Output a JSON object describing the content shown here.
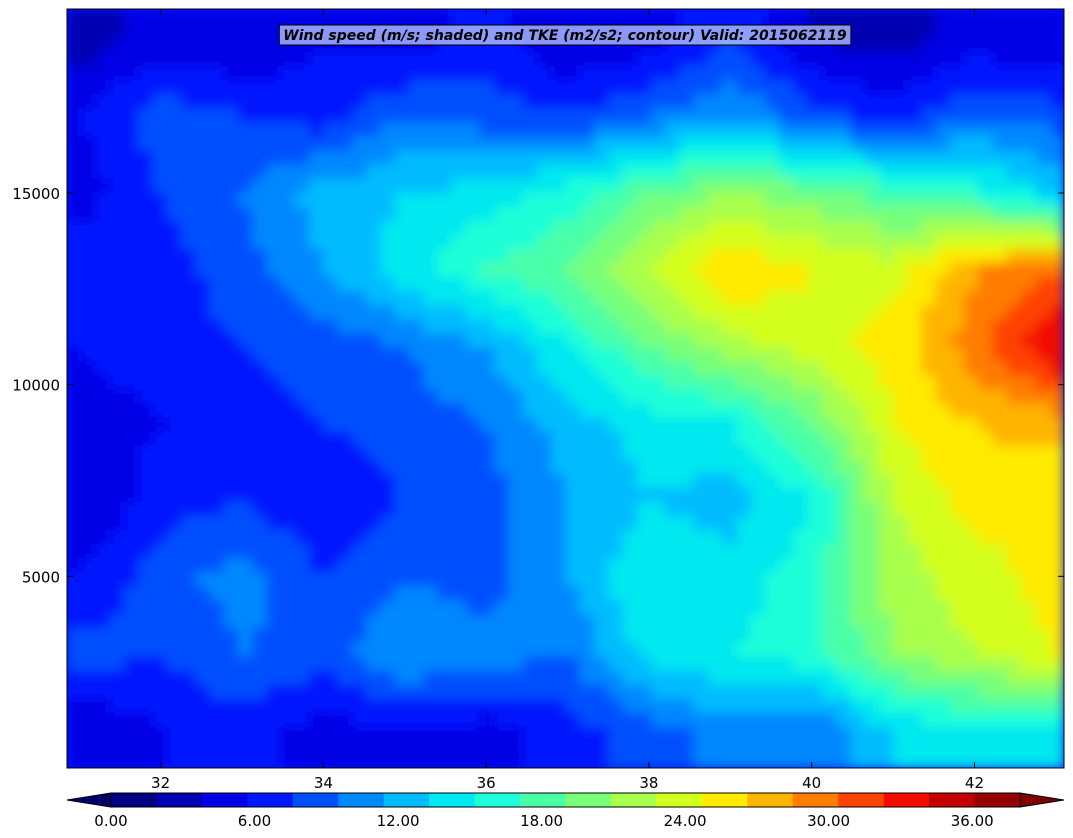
{
  "chart_data": {
    "type": "heatmap",
    "title": "Wind speed (m/s; shaded) and TKE (m2/s2; contour) Valid: 2015062119",
    "xlabel": "",
    "ylabel": "",
    "xlim": [
      30.85,
      43.1
    ],
    "ylim": [
      0,
      19800
    ],
    "x_ticks": [
      32,
      34,
      36,
      38,
      40,
      42
    ],
    "y_ticks": [
      5000,
      10000,
      15000
    ],
    "x": [
      31,
      32,
      33,
      34,
      35,
      36,
      37,
      38,
      39,
      40,
      41,
      42,
      43
    ],
    "y": [
      1000,
      3000,
      5000,
      7000,
      9000,
      11000,
      13000,
      15000,
      17000,
      19000
    ],
    "z": [
      [
        4,
        6,
        7,
        5,
        6,
        5,
        7,
        9,
        11,
        10,
        14,
        16,
        15
      ],
      [
        9,
        8,
        10,
        9,
        12,
        11,
        10,
        15,
        16,
        17,
        22,
        24,
        26
      ],
      [
        6,
        9,
        11,
        8,
        10,
        9,
        12,
        16,
        15,
        17,
        23,
        25,
        27
      ],
      [
        4,
        7,
        8,
        6,
        8,
        9,
        12,
        14,
        13,
        16,
        24,
        27,
        26
      ],
      [
        5,
        6,
        7,
        8,
        9,
        10,
        13,
        15,
        16,
        20,
        26,
        28,
        29
      ],
      [
        6,
        7,
        8,
        9,
        10,
        12,
        16,
        20,
        23,
        25,
        27,
        31,
        36
      ],
      [
        8,
        7,
        9,
        12,
        15,
        18,
        20,
        24,
        28,
        26,
        25,
        30,
        32
      ],
      [
        5,
        8,
        10,
        13,
        14,
        15,
        17,
        20,
        22,
        21,
        19,
        17,
        14
      ],
      [
        6,
        9,
        8,
        7,
        10,
        9,
        8,
        10,
        12,
        9,
        7,
        10,
        9
      ],
      [
        3,
        5,
        4,
        6,
        5,
        7,
        4,
        5,
        8,
        4,
        3,
        5,
        4
      ]
    ],
    "colorbar": {
      "orientation": "horizontal",
      "extend": "both",
      "tick_labels": [
        "0.00",
        "6.00",
        "12.00",
        "18.00",
        "24.00",
        "30.00",
        "36.00"
      ],
      "levels": [
        0,
        2,
        4,
        6,
        8,
        10,
        12,
        14,
        16,
        18,
        20,
        22,
        24,
        26,
        28,
        30,
        32,
        34,
        36,
        38
      ],
      "colors": [
        "#000080",
        "#0000b2",
        "#0000e5",
        "#0018ff",
        "#0050ff",
        "#0088ff",
        "#00bcff",
        "#00e8f0",
        "#1effd8",
        "#4affa8",
        "#78ff7a",
        "#a8ff4c",
        "#d4ff1c",
        "#ffea00",
        "#ffb400",
        "#ff7c00",
        "#ff4200",
        "#f20c00",
        "#c40000",
        "#960000"
      ],
      "under_color": "#00006a",
      "over_color": "#800000"
    }
  }
}
